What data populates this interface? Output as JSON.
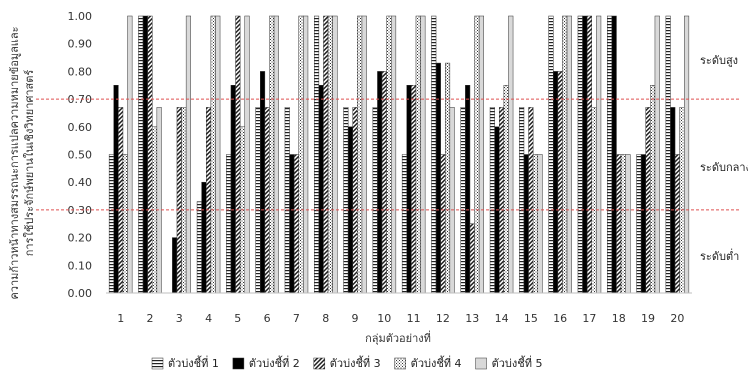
{
  "chart_data": {
    "type": "bar",
    "ylabel_lines": [
      "ความก้าวหน้าทางสมรรถนะการแปลความหมายข้อมูลและ",
      "การใช้ประจักษ์พยานในเชิงวิทยาศาสตร์"
    ],
    "xlabel": "กลุ่มตัวอย่างที่",
    "ylim": [
      0,
      1
    ],
    "yticks": [
      0.0,
      0.1,
      0.2,
      0.3,
      0.4,
      0.5,
      0.6,
      0.7,
      0.8,
      0.9,
      1.0
    ],
    "ytick_labels": [
      "0.00",
      "0.10",
      "0.20",
      "0.30",
      "0.40",
      "0.50",
      "0.60",
      "0.70",
      "0.80",
      "0.90",
      "1.00"
    ],
    "categories": [
      "1",
      "2",
      "3",
      "4",
      "5",
      "6",
      "7",
      "8",
      "9",
      "10",
      "11",
      "12",
      "13",
      "14",
      "15",
      "16",
      "17",
      "18",
      "19",
      "20"
    ],
    "series": [
      {
        "name": "ตัวบ่งชี้ที่ 1",
        "pattern": "hlines",
        "values": [
          0.5,
          1.0,
          0.0,
          0.33,
          0.5,
          0.67,
          0.67,
          1.0,
          0.67,
          0.67,
          0.5,
          1.0,
          0.67,
          0.67,
          0.67,
          1.0,
          1.0,
          1.0,
          0.5,
          1.0
        ]
      },
      {
        "name": "ตัวบ่งชี้ที่ 2",
        "pattern": "solid",
        "values": [
          0.75,
          1.0,
          0.2,
          0.4,
          0.75,
          0.8,
          0.5,
          0.75,
          0.6,
          0.8,
          0.75,
          0.83,
          0.75,
          0.6,
          0.5,
          0.8,
          1.0,
          1.0,
          0.5,
          0.67
        ]
      },
      {
        "name": "ตัวบ่งชี้ที่ 3",
        "pattern": "diagonal",
        "values": [
          0.67,
          1.0,
          0.67,
          0.67,
          1.0,
          0.67,
          0.5,
          1.0,
          0.67,
          0.8,
          0.75,
          0.5,
          0.25,
          0.67,
          0.67,
          0.8,
          1.0,
          0.5,
          0.67,
          0.5
        ]
      },
      {
        "name": "ตัวบ่งชี้ที่ 4",
        "pattern": "dots",
        "values": [
          0.5,
          0.6,
          0.67,
          1.0,
          0.6,
          1.0,
          1.0,
          1.0,
          1.0,
          1.0,
          1.0,
          0.83,
          1.0,
          0.75,
          0.5,
          1.0,
          0.67,
          0.5,
          0.75,
          0.67
        ]
      },
      {
        "name": "ตัวบ่งชี้ที่ 5",
        "pattern": "light",
        "values": [
          1.0,
          0.67,
          1.0,
          1.0,
          1.0,
          1.0,
          1.0,
          1.0,
          1.0,
          1.0,
          1.0,
          0.67,
          1.0,
          1.0,
          0.5,
          1.0,
          1.0,
          0.5,
          1.0,
          1.0
        ]
      }
    ],
    "thresholds": [
      0.7,
      0.3
    ],
    "threshold_color": "#e05050",
    "level_labels": [
      "ระดับสูง",
      "ระดับกลาง",
      "ระดับต่ำ"
    ],
    "legend_position": "bottom",
    "grid": false,
    "colors": {
      "solid": "#000000",
      "light": "#d9d9d9",
      "stroke": "#333333"
    }
  }
}
